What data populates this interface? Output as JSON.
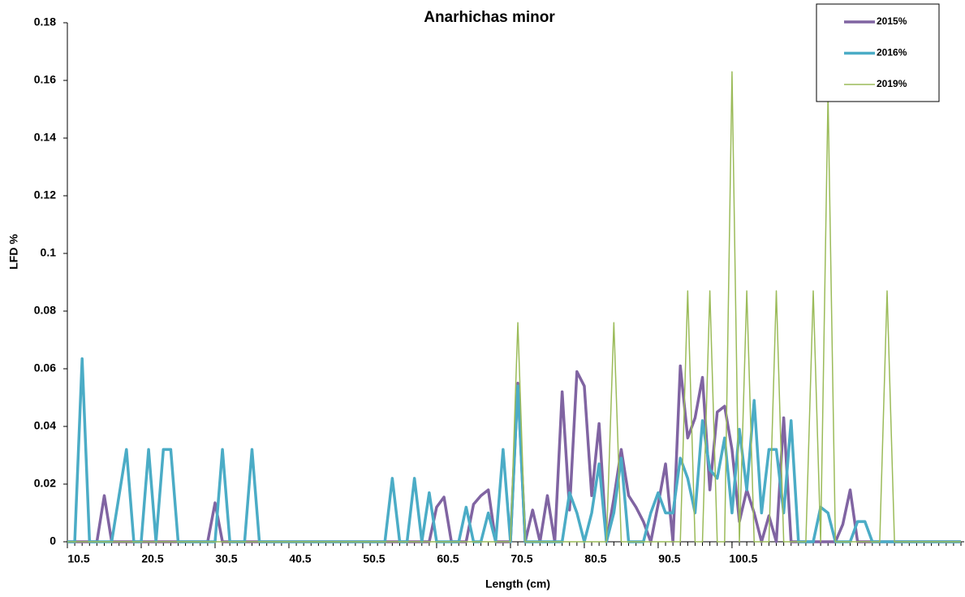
{
  "chart_data": {
    "type": "line",
    "title": "Anarhichas minor",
    "xlabel": "Length (cm)",
    "ylabel": "LFD %",
    "x": [
      10.5,
      11.5,
      12.5,
      13.5,
      14.5,
      15.5,
      16.5,
      17.5,
      18.5,
      19.5,
      20.5,
      21.5,
      22.5,
      23.5,
      24.5,
      25.5,
      26.5,
      27.5,
      28.5,
      29.5,
      30.5,
      31.5,
      32.5,
      33.5,
      34.5,
      35.5,
      36.5,
      37.5,
      38.5,
      39.5,
      40.5,
      41.5,
      42.5,
      43.5,
      44.5,
      45.5,
      46.5,
      47.5,
      48.5,
      49.5,
      50.5,
      51.5,
      52.5,
      53.5,
      54.5,
      55.5,
      56.5,
      57.5,
      58.5,
      59.5,
      60.5,
      61.5,
      62.5,
      63.5,
      64.5,
      65.5,
      66.5,
      67.5,
      68.5,
      69.5,
      70.5,
      71.5,
      72.5,
      73.5,
      74.5,
      75.5,
      76.5,
      77.5,
      78.5,
      79.5,
      80.5,
      81.5,
      82.5,
      83.5,
      84.5,
      85.5,
      86.5,
      87.5,
      88.5,
      89.5,
      90.5,
      91.5,
      92.5,
      93.5,
      94.5,
      95.5,
      96.5,
      97.5,
      98.5,
      99.5,
      100.5,
      101.5,
      102.5,
      103.5,
      104.5,
      105.5,
      106.5,
      107.5,
      108.5,
      109.5,
      110.5,
      111.5,
      112.5,
      113.5,
      114.5,
      115.5,
      116.5,
      117.5,
      118.5,
      119.5,
      120.5,
      121.5,
      122.5,
      123.5,
      124.5,
      125.5,
      126.5,
      127.5,
      128.5,
      129.5,
      130.5,
      131.5
    ],
    "series": [
      {
        "name": "2015%",
        "color": "#8064a2",
        "width": 3.5,
        "values": [
          0,
          0,
          0,
          0,
          0,
          0.016,
          0,
          0,
          0,
          0,
          0,
          0,
          0,
          0,
          0,
          0,
          0,
          0,
          0,
          0,
          0.0135,
          0,
          0,
          0,
          0,
          0,
          0,
          0,
          0,
          0,
          0,
          0,
          0,
          0,
          0,
          0,
          0,
          0,
          0,
          0,
          0,
          0,
          0,
          0,
          0,
          0,
          0,
          0,
          0,
          0,
          0.012,
          0.0155,
          0,
          0,
          0,
          0.013,
          0.016,
          0.018,
          0,
          0,
          0,
          0.055,
          0,
          0.011,
          0,
          0.016,
          0,
          0.052,
          0.011,
          0.059,
          0.054,
          0.016,
          0.041,
          0,
          0.015,
          0.032,
          0.016,
          0.012,
          0.007,
          0,
          0.013,
          0.027,
          0,
          0.061,
          0.036,
          0.043,
          0.057,
          0.018,
          0.045,
          0.047,
          0.032,
          0.007,
          0.018,
          0.01,
          0,
          0.009,
          0,
          0.043,
          0,
          0,
          0,
          0,
          0,
          0,
          0,
          0.006,
          0.018,
          0,
          0,
          0,
          0,
          0,
          0,
          0,
          0,
          0,
          0,
          0,
          0,
          0,
          0,
          0
        ]
      },
      {
        "name": "2016%",
        "color": "#4bacc6",
        "width": 3.5,
        "values": [
          0,
          0,
          0.0635,
          0,
          0,
          0,
          0,
          0.016,
          0.032,
          0,
          0,
          0.032,
          0,
          0.032,
          0.032,
          0,
          0,
          0,
          0,
          0,
          0,
          0.032,
          0,
          0,
          0,
          0.032,
          0,
          0,
          0,
          0,
          0,
          0,
          0,
          0,
          0,
          0,
          0,
          0,
          0,
          0,
          0,
          0,
          0,
          0,
          0.022,
          0,
          0,
          0.022,
          0,
          0.017,
          0,
          0,
          0,
          0,
          0.012,
          0,
          0,
          0.01,
          0,
          0.032,
          0,
          0.054,
          0,
          0,
          0,
          0,
          0,
          0,
          0.017,
          0.01,
          0,
          0.01,
          0.027,
          0,
          0.01,
          0.029,
          0,
          0,
          0,
          0.01,
          0.017,
          0.01,
          0.01,
          0.029,
          0.022,
          0.01,
          0.042,
          0.025,
          0.022,
          0.036,
          0.01,
          0.039,
          0.018,
          0.049,
          0.01,
          0.032,
          0.032,
          0.01,
          0.042,
          0,
          0,
          0,
          0.012,
          0.01,
          0,
          0,
          0,
          0.007,
          0.007,
          0,
          0,
          0,
          0,
          0,
          0,
          0,
          0,
          0,
          0,
          0,
          0,
          0
        ]
      },
      {
        "name": "2019%",
        "color": "#9bbb59",
        "width": 1.5,
        "values": [
          0,
          0,
          0,
          0,
          0,
          0,
          0,
          0,
          0,
          0,
          0,
          0,
          0,
          0,
          0,
          0,
          0,
          0,
          0,
          0,
          0,
          0,
          0,
          0,
          0,
          0,
          0,
          0,
          0,
          0,
          0,
          0,
          0,
          0,
          0,
          0,
          0,
          0,
          0,
          0,
          0,
          0,
          0,
          0,
          0,
          0,
          0,
          0,
          0,
          0,
          0,
          0,
          0,
          0,
          0,
          0,
          0,
          0,
          0,
          0,
          0,
          0.076,
          0,
          0,
          0,
          0,
          0,
          0,
          0,
          0,
          0,
          0,
          0,
          0,
          0.076,
          0,
          0,
          0,
          0,
          0,
          0,
          0,
          0,
          0,
          0.087,
          0,
          0,
          0.087,
          0,
          0,
          0.163,
          0,
          0.087,
          0,
          0,
          0,
          0.087,
          0,
          0,
          0,
          0,
          0.087,
          0,
          0.155,
          0,
          0,
          0,
          0,
          0,
          0,
          0,
          0.087,
          0,
          0,
          0,
          0,
          0,
          0,
          0,
          0,
          0,
          0
        ]
      }
    ],
    "xlim": [
      10.5,
      131.5
    ],
    "xticks": [
      10.5,
      20.5,
      30.5,
      40.5,
      50.5,
      60.5,
      70.5,
      80.5,
      90.5,
      100.5
    ],
    "ylim": [
      0,
      0.18
    ],
    "yticks": [
      0,
      0.02,
      0.04,
      0.06,
      0.08,
      0.1,
      0.12,
      0.14,
      0.16,
      0.18
    ],
    "legend": "top-right"
  }
}
